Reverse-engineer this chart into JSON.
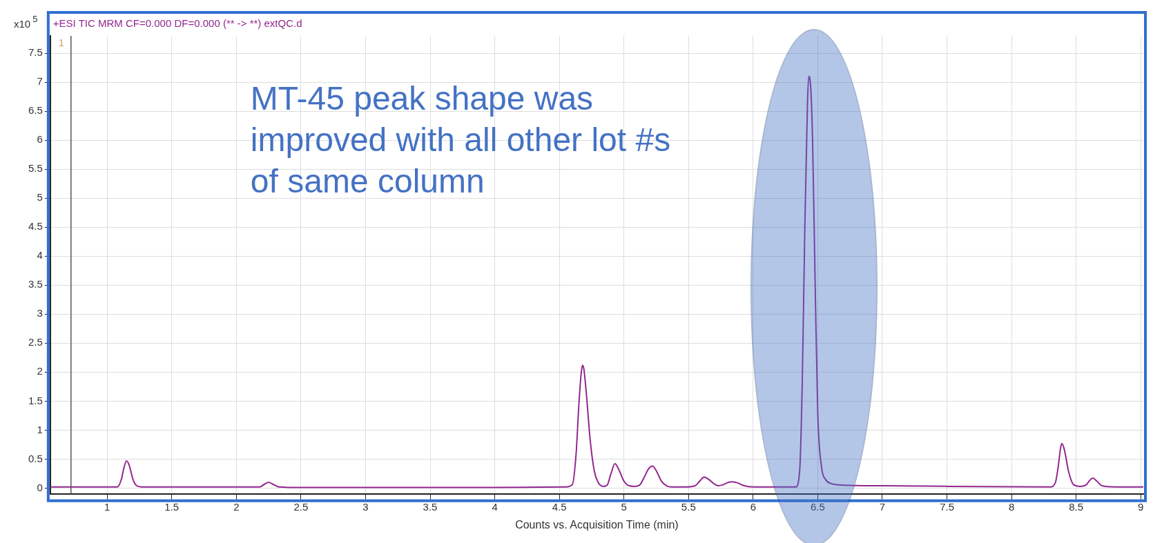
{
  "chart_data": {
    "type": "line",
    "title": "+ESI TIC MRM CF=0.000 DF=0.000 (** -> **) extQC.d",
    "xlabel": "Counts vs. Acquisition Time (min)",
    "ylabel": "x10$^{5}$",
    "xlim": [
      0.56,
      9.02
    ],
    "ylim": [
      -0.1,
      7.8
    ],
    "xticks": [
      1,
      1.5,
      2,
      2.5,
      3,
      3.5,
      4,
      4.5,
      5,
      5.5,
      6,
      6.5,
      7,
      7.5,
      8,
      8.5,
      9
    ],
    "yticks": [
      0,
      0.5,
      1,
      1.5,
      2,
      2.5,
      3,
      3.5,
      4,
      4.5,
      5,
      5.5,
      6,
      6.5,
      7,
      7.5
    ],
    "grid": true,
    "legend": false,
    "marker": "none",
    "line_style": "solid",
    "ref_lines": [
      {
        "axis": "x",
        "value": 0.72,
        "label": "1",
        "color": "#555555"
      }
    ],
    "annotations": [
      "MT-45 peak shape was improved with all other lot #s of same column"
    ],
    "bands": [
      {
        "axis": "x",
        "from": 5.98,
        "to": 6.96,
        "color": "#4472c4"
      }
    ],
    "series": [
      {
        "color": "#93278f",
        "x": [
          0.56,
          1.08,
          1.11,
          1.13,
          1.15,
          1.17,
          1.2,
          1.23,
          1.28,
          1.6,
          2.18,
          2.22,
          2.25,
          2.28,
          2.33,
          2.5,
          4.0,
          4.55,
          4.6,
          4.63,
          4.65,
          4.67,
          4.68,
          4.69,
          4.71,
          4.74,
          4.77,
          4.8,
          4.84,
          4.87,
          4.9,
          4.93,
          4.96,
          5.0,
          5.04,
          5.08,
          5.12,
          5.16,
          5.19,
          5.22,
          5.25,
          5.29,
          5.33,
          5.38,
          5.48,
          5.55,
          5.59,
          5.62,
          5.65,
          5.7,
          5.73,
          5.77,
          5.81,
          5.84,
          5.88,
          5.93,
          6.0,
          6.33,
          6.36,
          6.38,
          6.4,
          6.42,
          6.43,
          6.44,
          6.46,
          6.48,
          6.5,
          6.53,
          6.56,
          6.6,
          6.7,
          7.0,
          7.5,
          8.3,
          8.34,
          8.36,
          8.38,
          8.39,
          8.41,
          8.44,
          8.48,
          8.53,
          8.58,
          8.6,
          8.63,
          8.66,
          8.7,
          8.8,
          9.02
        ],
        "values": [
          0.02,
          0.02,
          0.15,
          0.35,
          0.47,
          0.4,
          0.15,
          0.04,
          0.02,
          0.02,
          0.02,
          0.07,
          0.1,
          0.07,
          0.02,
          0.01,
          0.01,
          0.02,
          0.06,
          0.6,
          1.4,
          2.0,
          2.12,
          2.05,
          1.6,
          0.8,
          0.3,
          0.1,
          0.03,
          0.05,
          0.25,
          0.42,
          0.32,
          0.12,
          0.04,
          0.03,
          0.05,
          0.2,
          0.33,
          0.38,
          0.3,
          0.12,
          0.04,
          0.02,
          0.02,
          0.04,
          0.13,
          0.19,
          0.16,
          0.07,
          0.04,
          0.06,
          0.1,
          0.11,
          0.09,
          0.04,
          0.02,
          0.02,
          0.3,
          1.8,
          4.5,
          6.6,
          7.1,
          7.05,
          6.0,
          3.5,
          1.3,
          0.35,
          0.15,
          0.08,
          0.05,
          0.04,
          0.03,
          0.02,
          0.1,
          0.35,
          0.7,
          0.77,
          0.65,
          0.3,
          0.06,
          0.03,
          0.06,
          0.12,
          0.17,
          0.12,
          0.04,
          0.02,
          0.02
        ]
      }
    ]
  }
}
